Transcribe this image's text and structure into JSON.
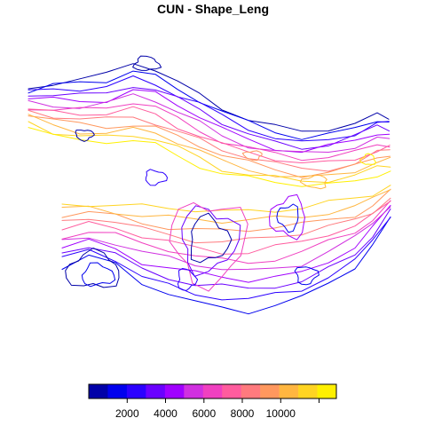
{
  "title": "CUN - Shape_Leng",
  "legend": {
    "colors": [
      "#0000a8",
      "#0000ee",
      "#2b00ff",
      "#6a00ff",
      "#a000ff",
      "#d030e0",
      "#f040c0",
      "#ff5c9e",
      "#ff7a7e",
      "#ff985e",
      "#ffb640",
      "#ffd422",
      "#fff000"
    ],
    "min": 0,
    "max": 12900,
    "ticks": [
      {
        "value": 2000,
        "label": "2000"
      },
      {
        "value": 4000,
        "label": "4000"
      },
      {
        "value": 6000,
        "label": "6000"
      },
      {
        "value": 8000,
        "label": "8000"
      },
      {
        "value": 10000,
        "label": "10000"
      },
      {
        "value": 12000,
        "label": ""
      }
    ]
  }
}
